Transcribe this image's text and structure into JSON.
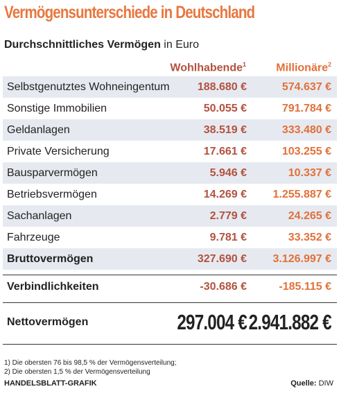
{
  "header": {
    "title": "Vermögensunterschiede in Deutschland",
    "subtitle": "Durchschnittliches Vermögen",
    "unit": "in Euro"
  },
  "table": {
    "columns": [
      {
        "label": "Wohlhabende",
        "note": "1"
      },
      {
        "label": "Millionäre",
        "note": "2"
      }
    ],
    "rows": [
      [
        "Selbstgenutztes Wohneingentum",
        "188.680 €",
        "574.637 €"
      ],
      [
        "Sonstige Immobilien",
        "50.055 €",
        "791.784 €"
      ],
      [
        "Geldanlagen",
        "38.519 €",
        "333.480 €"
      ],
      [
        "Private Versicherung",
        "17.661 €",
        "103.255 €"
      ],
      [
        "Bausparvermögen",
        "5.946 €",
        "10.337 €"
      ],
      [
        "Betriebsvermögen",
        "14.269 €",
        "1.255.887 €"
      ],
      [
        "Sachanlagen",
        "2.779 €",
        "24.265 €"
      ],
      [
        "Fahrzeuge",
        "9.781 €",
        "33.352 €"
      ]
    ],
    "gross": [
      "Bruttovermögen",
      "327.690 €",
      "3.126.997 €"
    ],
    "liabilities": [
      "Verbindlichkeiten",
      "-30.686 €",
      "-185.115 €"
    ],
    "net": [
      "Nettovermögen",
      "297.004 €",
      "2.941.882 €"
    ]
  },
  "footnotes": [
    "1) Die obersten 76 bis 98,5 % der Vermögensverteilung;",
    "2) Die obersten 1,5 % der Vermögensverteilung"
  ],
  "footer": {
    "credit": "HANDELSBLATT-GRAFIK",
    "source_label": "Quelle:",
    "source": "DIW"
  }
}
